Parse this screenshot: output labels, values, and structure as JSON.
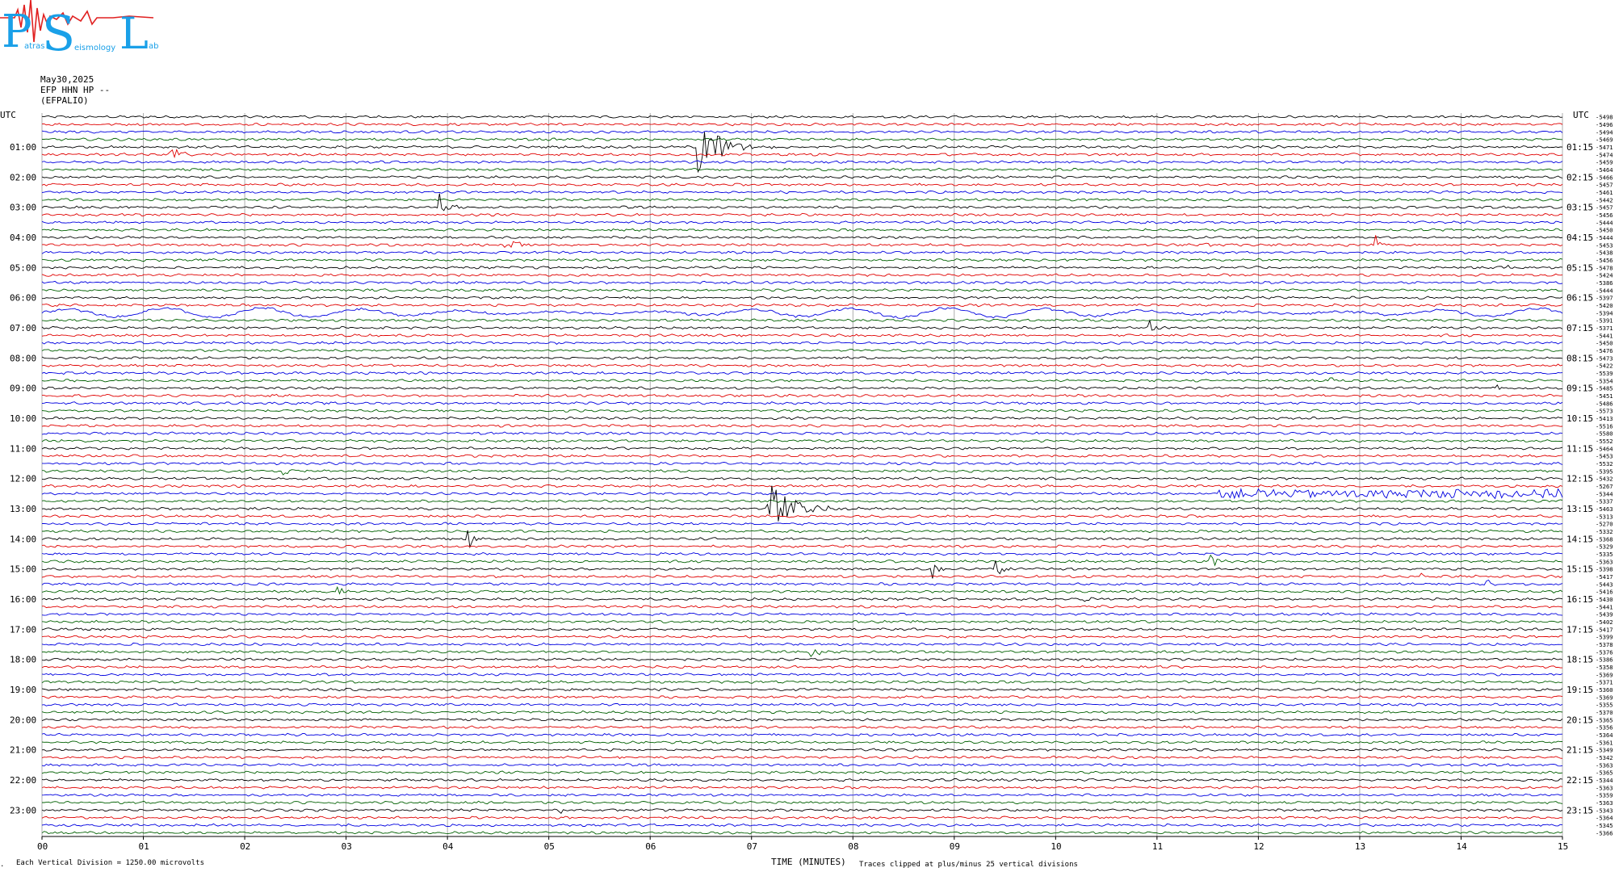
{
  "logo": {
    "letters": [
      "P",
      "S",
      "L"
    ],
    "small_words": [
      "atras",
      "eismology",
      "ab"
    ]
  },
  "header": {
    "date": "May30,2025",
    "channel": "EFP HHN HP --",
    "station": "(EFPALIO)"
  },
  "footer": {
    "scale_note": "Each Vertical Division = 1250.00 microvolts",
    "clip_note": "Traces clipped at plus/minus 25 vertical divisions",
    "corner_mark": "."
  },
  "colors": {
    "trace_cycle": [
      "#000000",
      "#e00000",
      "#0000e0",
      "#006000"
    ],
    "grid": "#999999",
    "logo": "#1aa0e8",
    "logo_red": "#e02020"
  },
  "chart_data": {
    "type": "line",
    "title": "",
    "xlabel": "TIME (MINUTES)",
    "ylabel": "UTC",
    "xlim": [
      0,
      15
    ],
    "x_ticks": [
      "00",
      "01",
      "02",
      "03",
      "04",
      "05",
      "06",
      "07",
      "08",
      "09",
      "10",
      "11",
      "12",
      "13",
      "14",
      "15"
    ],
    "left_axis_title": "UTC",
    "right_axis_title": "UTC",
    "left_labels": [
      "01:00",
      "02:00",
      "03:00",
      "04:00",
      "05:00",
      "06:00",
      "07:00",
      "08:00",
      "09:00",
      "10:00",
      "11:00",
      "12:00",
      "13:00",
      "14:00",
      "15:00",
      "16:00",
      "17:00",
      "18:00",
      "19:00",
      "20:00",
      "21:00",
      "22:00",
      "23:00"
    ],
    "right_labels": [
      "01:15",
      "02:15",
      "03:15",
      "04:15",
      "05:15",
      "06:15",
      "07:15",
      "08:15",
      "09:15",
      "10:15",
      "11:15",
      "12:15",
      "13:15",
      "14:15",
      "15:15",
      "16:15",
      "17:15",
      "18:15",
      "19:15",
      "20:15",
      "21:15",
      "22:15",
      "23:15"
    ],
    "trace_count": 96,
    "trace_minutes": 15,
    "trace_offsets": [
      "-5498",
      "-5496",
      "-5494",
      "-5469",
      "-5471",
      "-5474",
      "-5459",
      "-5464",
      "-5466",
      "-5457",
      "-5461",
      "-5442",
      "-5457",
      "-5456",
      "-5444",
      "-5450",
      "-5444",
      "-5453",
      "-5438",
      "-5456",
      "-5478",
      "-5424",
      "-5386",
      "-5444",
      "-5397",
      "-5420",
      "-5394",
      "-5391",
      "-5371",
      "-5441",
      "-5450",
      "-5476",
      "-5473",
      "-5422",
      "-5539",
      "-5354",
      "-5485",
      "-5451",
      "-5486",
      "-5573",
      "-5413",
      "-5516",
      "-5580",
      "-5552",
      "-5464",
      "-5453",
      "-5532",
      "-5395",
      "-5432",
      "-5267",
      "-5344",
      "-5337",
      "-5463",
      "-5313",
      "-5270",
      "-5332",
      "-5368",
      "-5329",
      "-5335",
      "-5363",
      "-5398",
      "-5417",
      "-5443",
      "-5416",
      "-5430",
      "-5441",
      "-5439",
      "-5402",
      "-5417",
      "-5399",
      "-5378",
      "-5376",
      "-5386",
      "-5358",
      "-5369",
      "-5371",
      "-5360",
      "-5369",
      "-5355",
      "-5370",
      "-5365",
      "-5356",
      "-5364",
      "-5361",
      "-5349",
      "-5342",
      "-5363",
      "-5365",
      "-5344",
      "-5363",
      "-5359",
      "-5363",
      "-5343",
      "-5364",
      "-5345",
      "-5366"
    ],
    "events": [
      {
        "trace": 5,
        "minute": 1.28,
        "amp": 22,
        "dur": 0.35
      },
      {
        "trace": 4,
        "minute": 6.5,
        "amp": 40,
        "dur": 1.0
      },
      {
        "trace": 12,
        "minute": 3.95,
        "amp": 18,
        "dur": 0.3
      },
      {
        "trace": 17,
        "minute": 4.58,
        "amp": 14,
        "dur": 0.45
      },
      {
        "trace": 17,
        "minute": 11.5,
        "amp": 4,
        "dur": 0.5
      },
      {
        "trace": 17,
        "minute": 13.18,
        "amp": 16,
        "dur": 0.2
      },
      {
        "trace": 20,
        "minute": 14.48,
        "amp": 7,
        "dur": 0.2
      },
      {
        "trace": 28,
        "minute": 10.95,
        "amp": 18,
        "dur": 0.3
      },
      {
        "trace": 35,
        "minute": 12.72,
        "amp": 7,
        "dur": 0.2
      },
      {
        "trace": 36,
        "minute": 14.38,
        "amp": 8,
        "dur": 0.2
      },
      {
        "trace": 47,
        "minute": 2.4,
        "amp": 7,
        "dur": 0.3
      },
      {
        "trace": 52,
        "minute": 7.15,
        "amp": 48,
        "dur": 1.0
      },
      {
        "trace": 56,
        "minute": 4.22,
        "amp": 20,
        "dur": 0.25
      },
      {
        "trace": 60,
        "minute": 8.8,
        "amp": 22,
        "dur": 0.25
      },
      {
        "trace": 60,
        "minute": 9.42,
        "amp": 18,
        "dur": 0.25
      },
      {
        "trace": 59,
        "minute": 11.55,
        "amp": 9,
        "dur": 0.45
      },
      {
        "trace": 61,
        "minute": 13.63,
        "amp": 9,
        "dur": 0.2
      },
      {
        "trace": 62,
        "minute": 14.28,
        "amp": 9,
        "dur": 0.2
      },
      {
        "trace": 63,
        "minute": 2.93,
        "amp": 16,
        "dur": 0.2
      },
      {
        "trace": 64,
        "minute": 10.3,
        "amp": 12,
        "dur": 0.3
      },
      {
        "trace": 71,
        "minute": 7.6,
        "amp": 11,
        "dur": 0.3
      },
      {
        "trace": 92,
        "minute": 5.15,
        "amp": 4,
        "dur": 0.2
      }
    ],
    "long_period": {
      "trace": 26,
      "from_minute": 0.0,
      "to_minute": 15.0,
      "amp": 6
    },
    "noisy_band": {
      "trace": 50,
      "from_minute": 11.6,
      "to_minute": 15.0,
      "amp": 5
    }
  }
}
